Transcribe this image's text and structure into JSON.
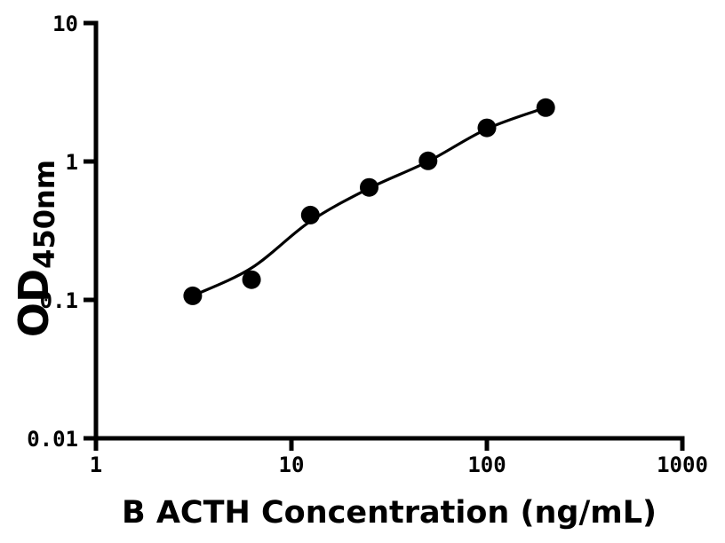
{
  "figure": {
    "background": "#ffffff",
    "axis_color": "#000000",
    "marker_color": "#000000",
    "curve_color": "#000000"
  },
  "chart_data": {
    "type": "scatter",
    "title": "",
    "xlabel": "B ACTH Concentration (ng/mL)",
    "ylabel": "OD",
    "ylabel_subscript": "450nm",
    "x_scale": "log",
    "y_scale": "log",
    "xlim": [
      1,
      1000
    ],
    "ylim": [
      0.01,
      10
    ],
    "grid": false,
    "legend": "none",
    "x_ticks": [
      {
        "value": 1,
        "label": "1"
      },
      {
        "value": 10,
        "label": "10"
      },
      {
        "value": 100,
        "label": "100"
      },
      {
        "value": 1000,
        "label": "1000"
      }
    ],
    "y_ticks": [
      {
        "value": 0.01,
        "label": "0.01"
      },
      {
        "value": 0.1,
        "label": "0.1"
      },
      {
        "value": 1,
        "label": "1"
      },
      {
        "value": 10,
        "label": "10"
      }
    ],
    "series": [
      {
        "name": "standard-points",
        "marker": "circle",
        "x": [
          3.125,
          6.25,
          12.5,
          25,
          50,
          100,
          200
        ],
        "y": [
          0.107,
          0.14,
          0.41,
          0.65,
          1.01,
          1.75,
          2.45
        ]
      }
    ],
    "fit_curve": {
      "name": "fitted-standard-curve",
      "x": [
        3.125,
        6.25,
        12.5,
        25,
        50,
        100,
        200
      ],
      "y": [
        0.107,
        0.17,
        0.37,
        0.64,
        1.0,
        1.72,
        2.45
      ]
    }
  }
}
